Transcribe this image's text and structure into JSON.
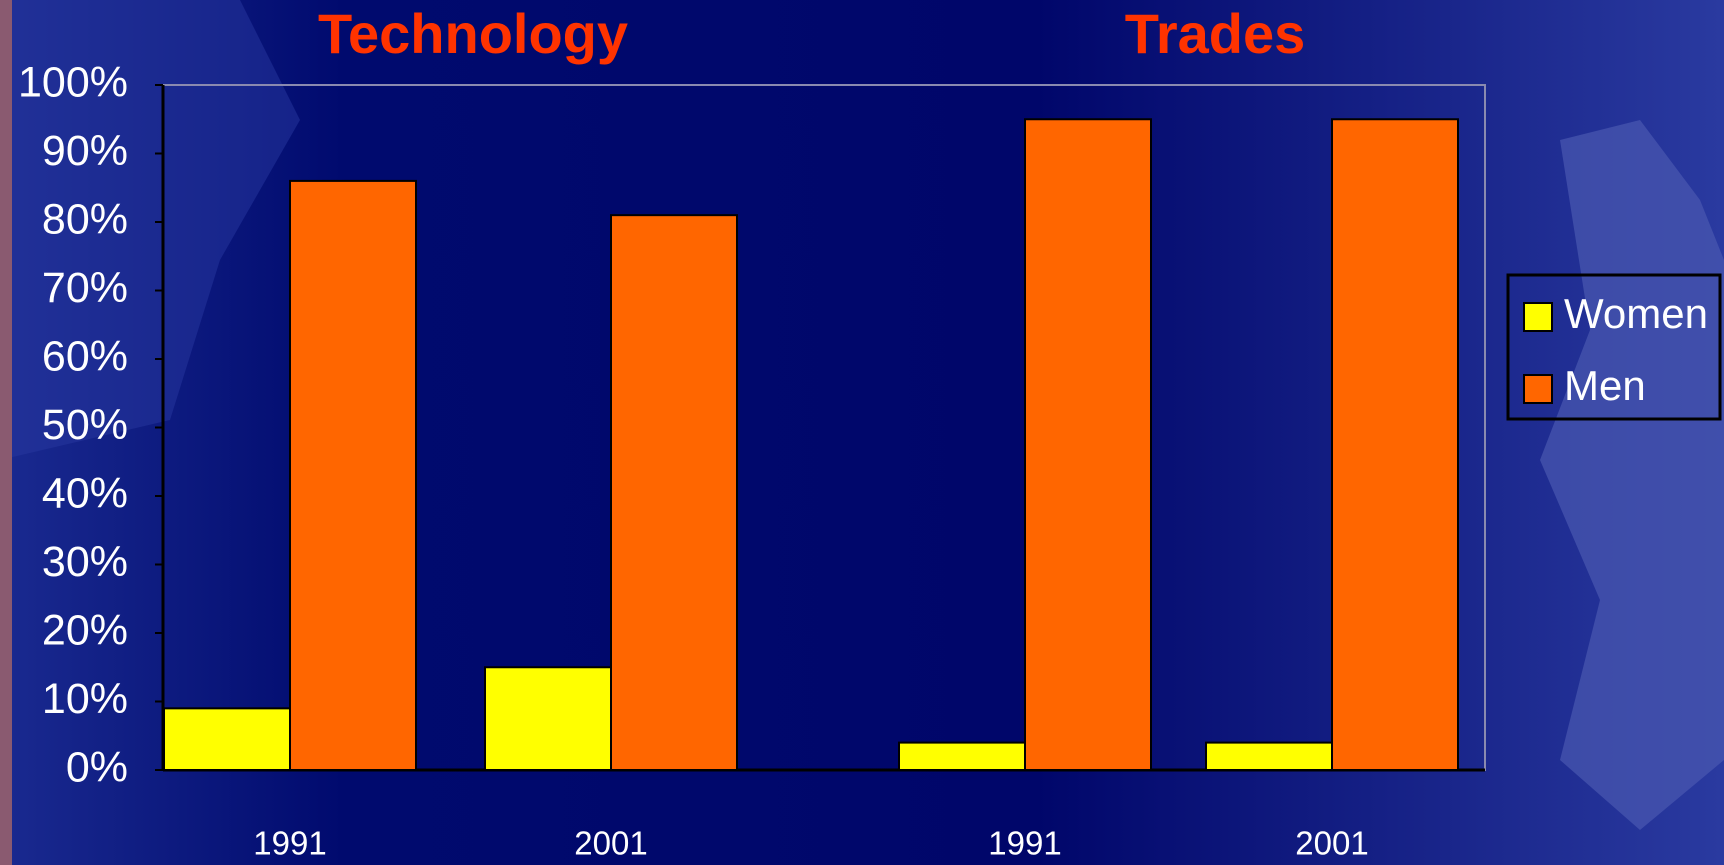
{
  "chart_data": {
    "type": "bar",
    "group_labels": [
      "Technology",
      "Trades"
    ],
    "categories": [
      "1991",
      "2001",
      "1991",
      "2001"
    ],
    "series": [
      {
        "name": "Women",
        "color": "#ffff00",
        "values": [
          9,
          15,
          4,
          4
        ]
      },
      {
        "name": "Men",
        "color": "#ff6600",
        "values": [
          86,
          81,
          95,
          95
        ]
      }
    ],
    "ylim": [
      0,
      100
    ],
    "yticks": [
      {
        "value": 0,
        "label": "0%"
      },
      {
        "value": 10,
        "label": "10%"
      },
      {
        "value": 20,
        "label": "20%"
      },
      {
        "value": 30,
        "label": "30%"
      },
      {
        "value": 40,
        "label": "40%"
      },
      {
        "value": 50,
        "label": "50%"
      },
      {
        "value": 60,
        "label": "60%"
      },
      {
        "value": 70,
        "label": "70%"
      },
      {
        "value": 80,
        "label": "80%"
      },
      {
        "value": 90,
        "label": "90%"
      },
      {
        "value": 100,
        "label": "100%"
      }
    ],
    "legend": "right"
  }
}
